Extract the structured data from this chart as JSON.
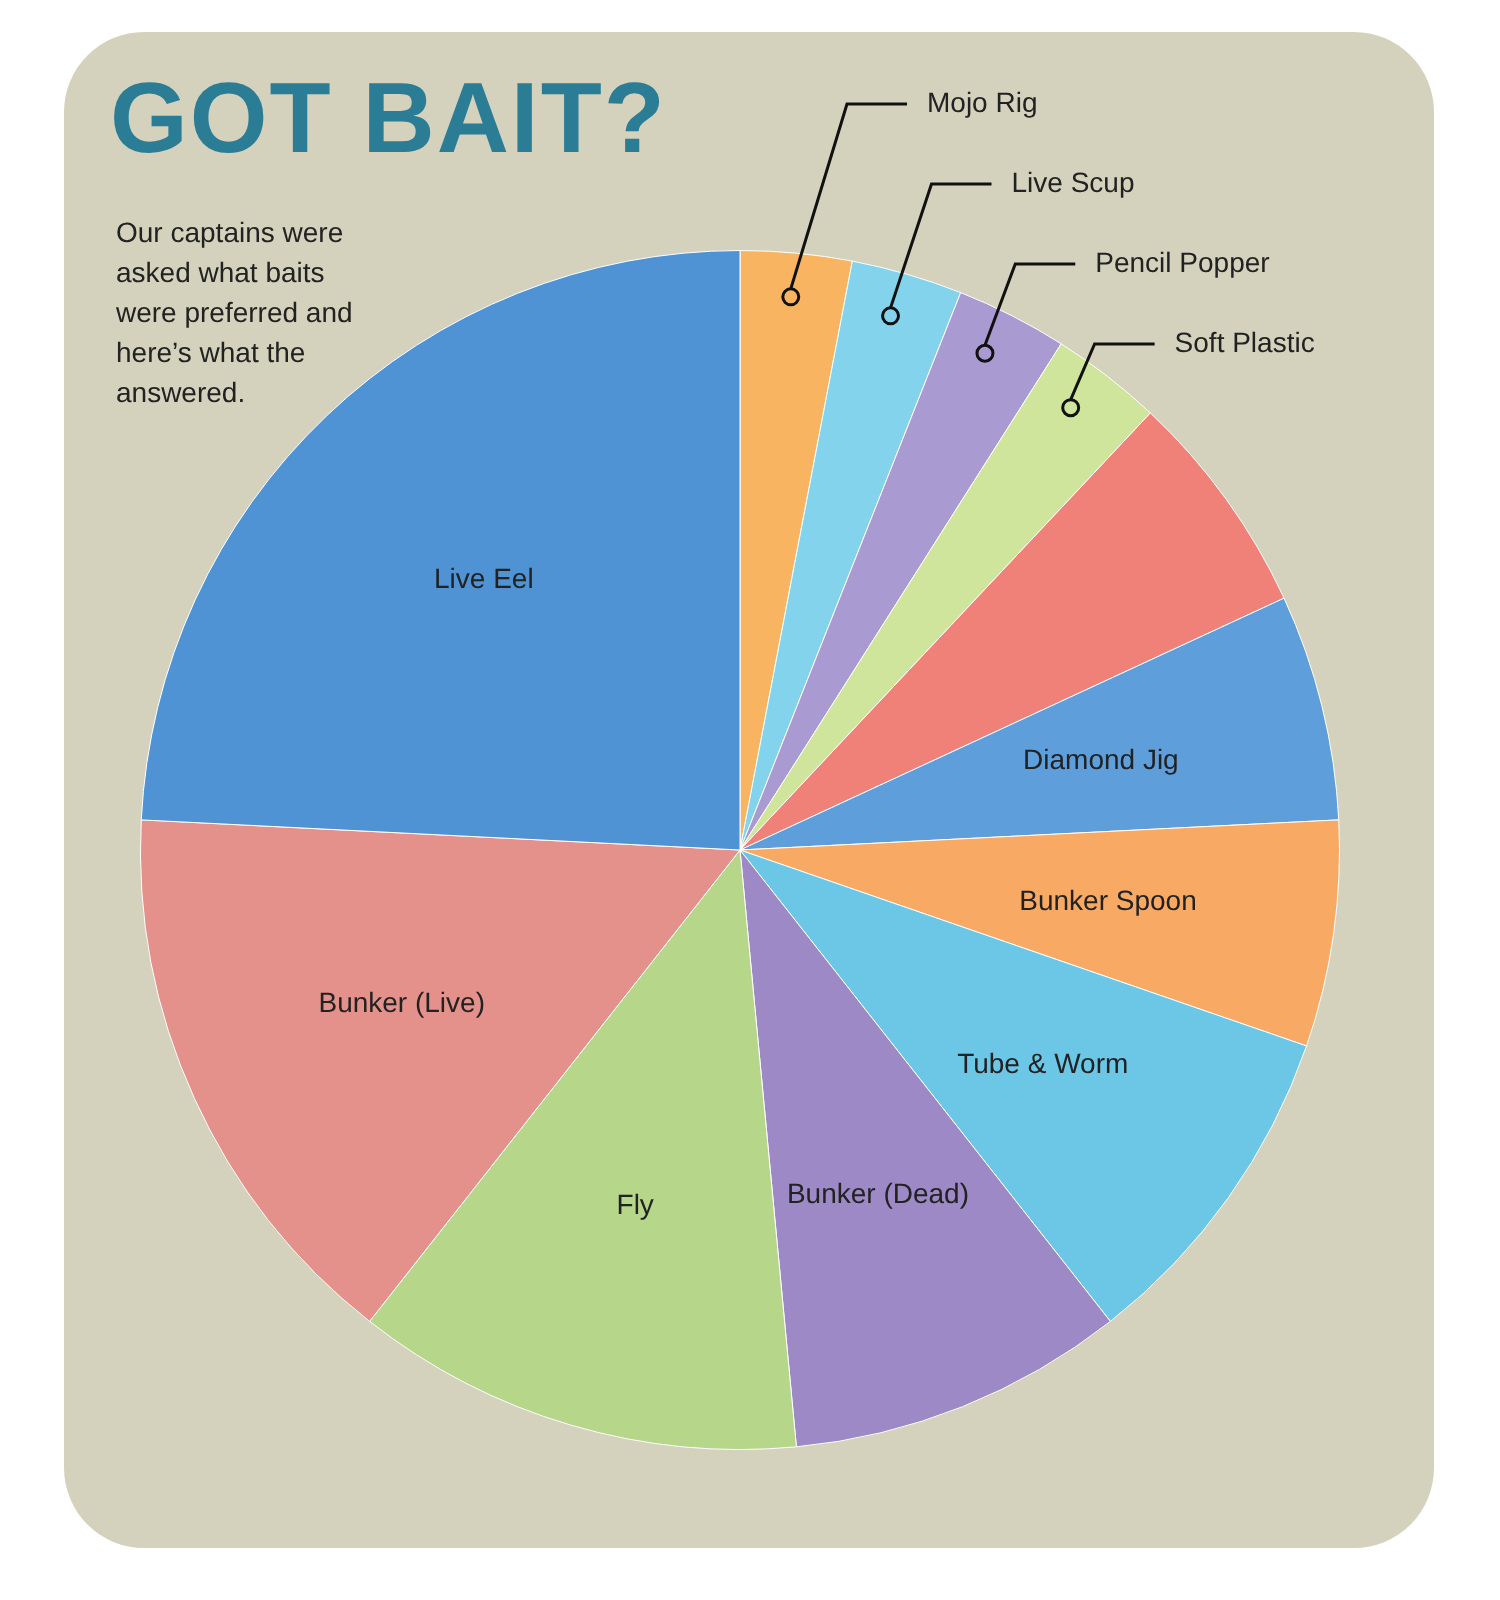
{
  "chart_data": {
    "type": "pie",
    "title": "GOT BAIT?",
    "annotations": [
      "Our captains were asked what baits were preferred and here’s what the answered."
    ],
    "categories": [
      "Mojo Rig",
      "Live Scup",
      "Pencil Popper",
      "Soft Plastic",
      null,
      "Diamond Jig",
      "Bunker Spoon",
      "Tube & Worm",
      "Bunker (Dead)",
      "Fly",
      "Bunker (Live)",
      "Live Eel"
    ],
    "values": [
      3.0,
      3.0,
      3.0,
      3.0,
      6.1,
      6.1,
      6.1,
      9.1,
      9.1,
      12.1,
      15.2,
      24.2
    ],
    "colors": [
      "#f9b462",
      "#84d3ec",
      "#a99bd2",
      "#d0e59c",
      "#ef8179",
      "#5e9edb",
      "#f8a963",
      "#6cc6e6",
      "#9c89c6",
      "#b6d68a",
      "#e3918a",
      "#4f93d4"
    ],
    "legend": false
  }
}
